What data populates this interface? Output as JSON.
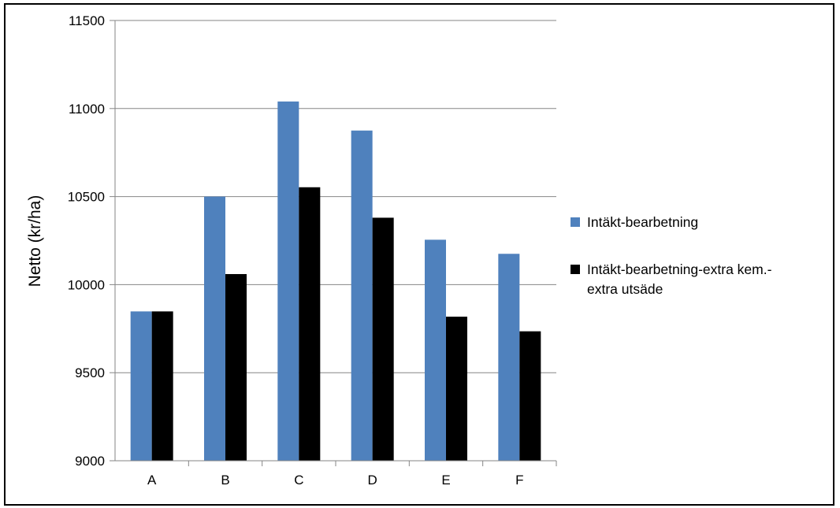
{
  "chart_data": {
    "type": "bar",
    "categories": [
      "A",
      "B",
      "C",
      "D",
      "E",
      "F"
    ],
    "series": [
      {
        "name": "Intäkt-bearbetning",
        "legend_lines": [
          "Intäkt-bearbetning"
        ],
        "color": "#4F81BD",
        "values": [
          9848,
          10500,
          11040,
          10875,
          10255,
          10175
        ]
      },
      {
        "name": "Intäkt-bearbetning-extra kem.-extra utsäde",
        "legend_lines": [
          "Intäkt-bearbetning-extra kem.-",
          "extra utsäde"
        ],
        "color": "#000000",
        "values": [
          9848,
          10060,
          10553,
          10380,
          9818,
          9735
        ]
      }
    ],
    "ylabel": "Netto (kr/ha)",
    "xlabel": "",
    "title": "",
    "ylim": [
      9000,
      11500
    ],
    "yticks": [
      9000,
      9500,
      10000,
      10500,
      11000,
      11500
    ],
    "grid": true,
    "legend_position": "right"
  }
}
